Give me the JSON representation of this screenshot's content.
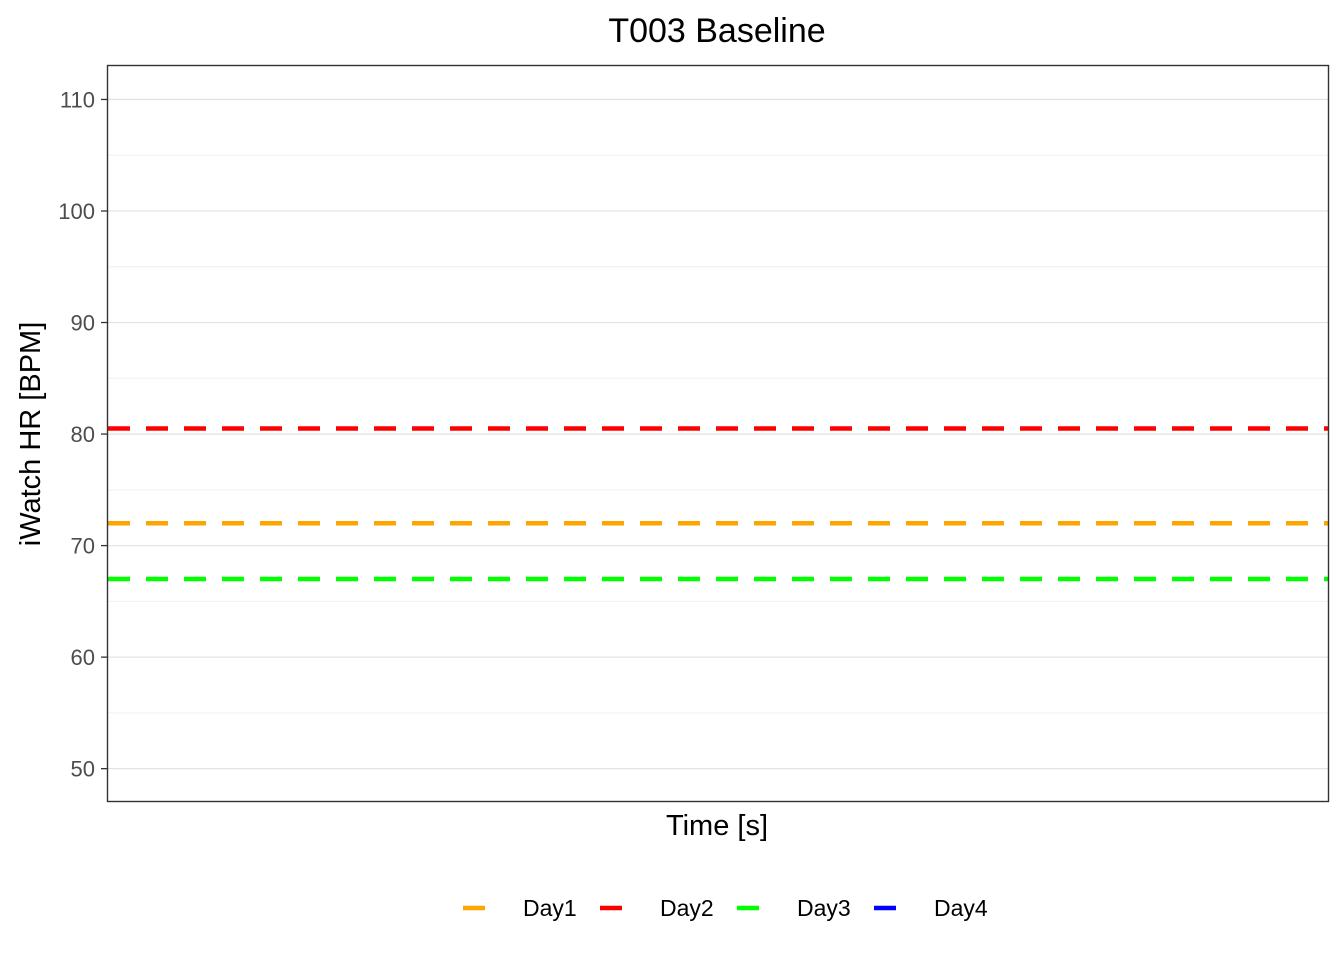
{
  "chart_data": {
    "type": "line",
    "title": "T003 Baseline",
    "xlabel": "Time [s]",
    "ylabel": "iWatch HR [BPM]",
    "ylim": [
      47.1,
      113
    ],
    "yticks": [
      50,
      60,
      70,
      80,
      90,
      100,
      110
    ],
    "grid": true,
    "legend_position": "bottom",
    "series": [
      {
        "name": "Day1",
        "value": 72,
        "color": "#FFA500",
        "style": "dashed"
      },
      {
        "name": "Day2",
        "value": 80.5,
        "color": "#FF0000",
        "style": "dashed"
      },
      {
        "name": "Day3",
        "value": 67,
        "color": "#00FF00",
        "style": "dashed"
      },
      {
        "name": "Day4",
        "value": null,
        "color": "#0000FF",
        "style": "dashed"
      }
    ]
  }
}
